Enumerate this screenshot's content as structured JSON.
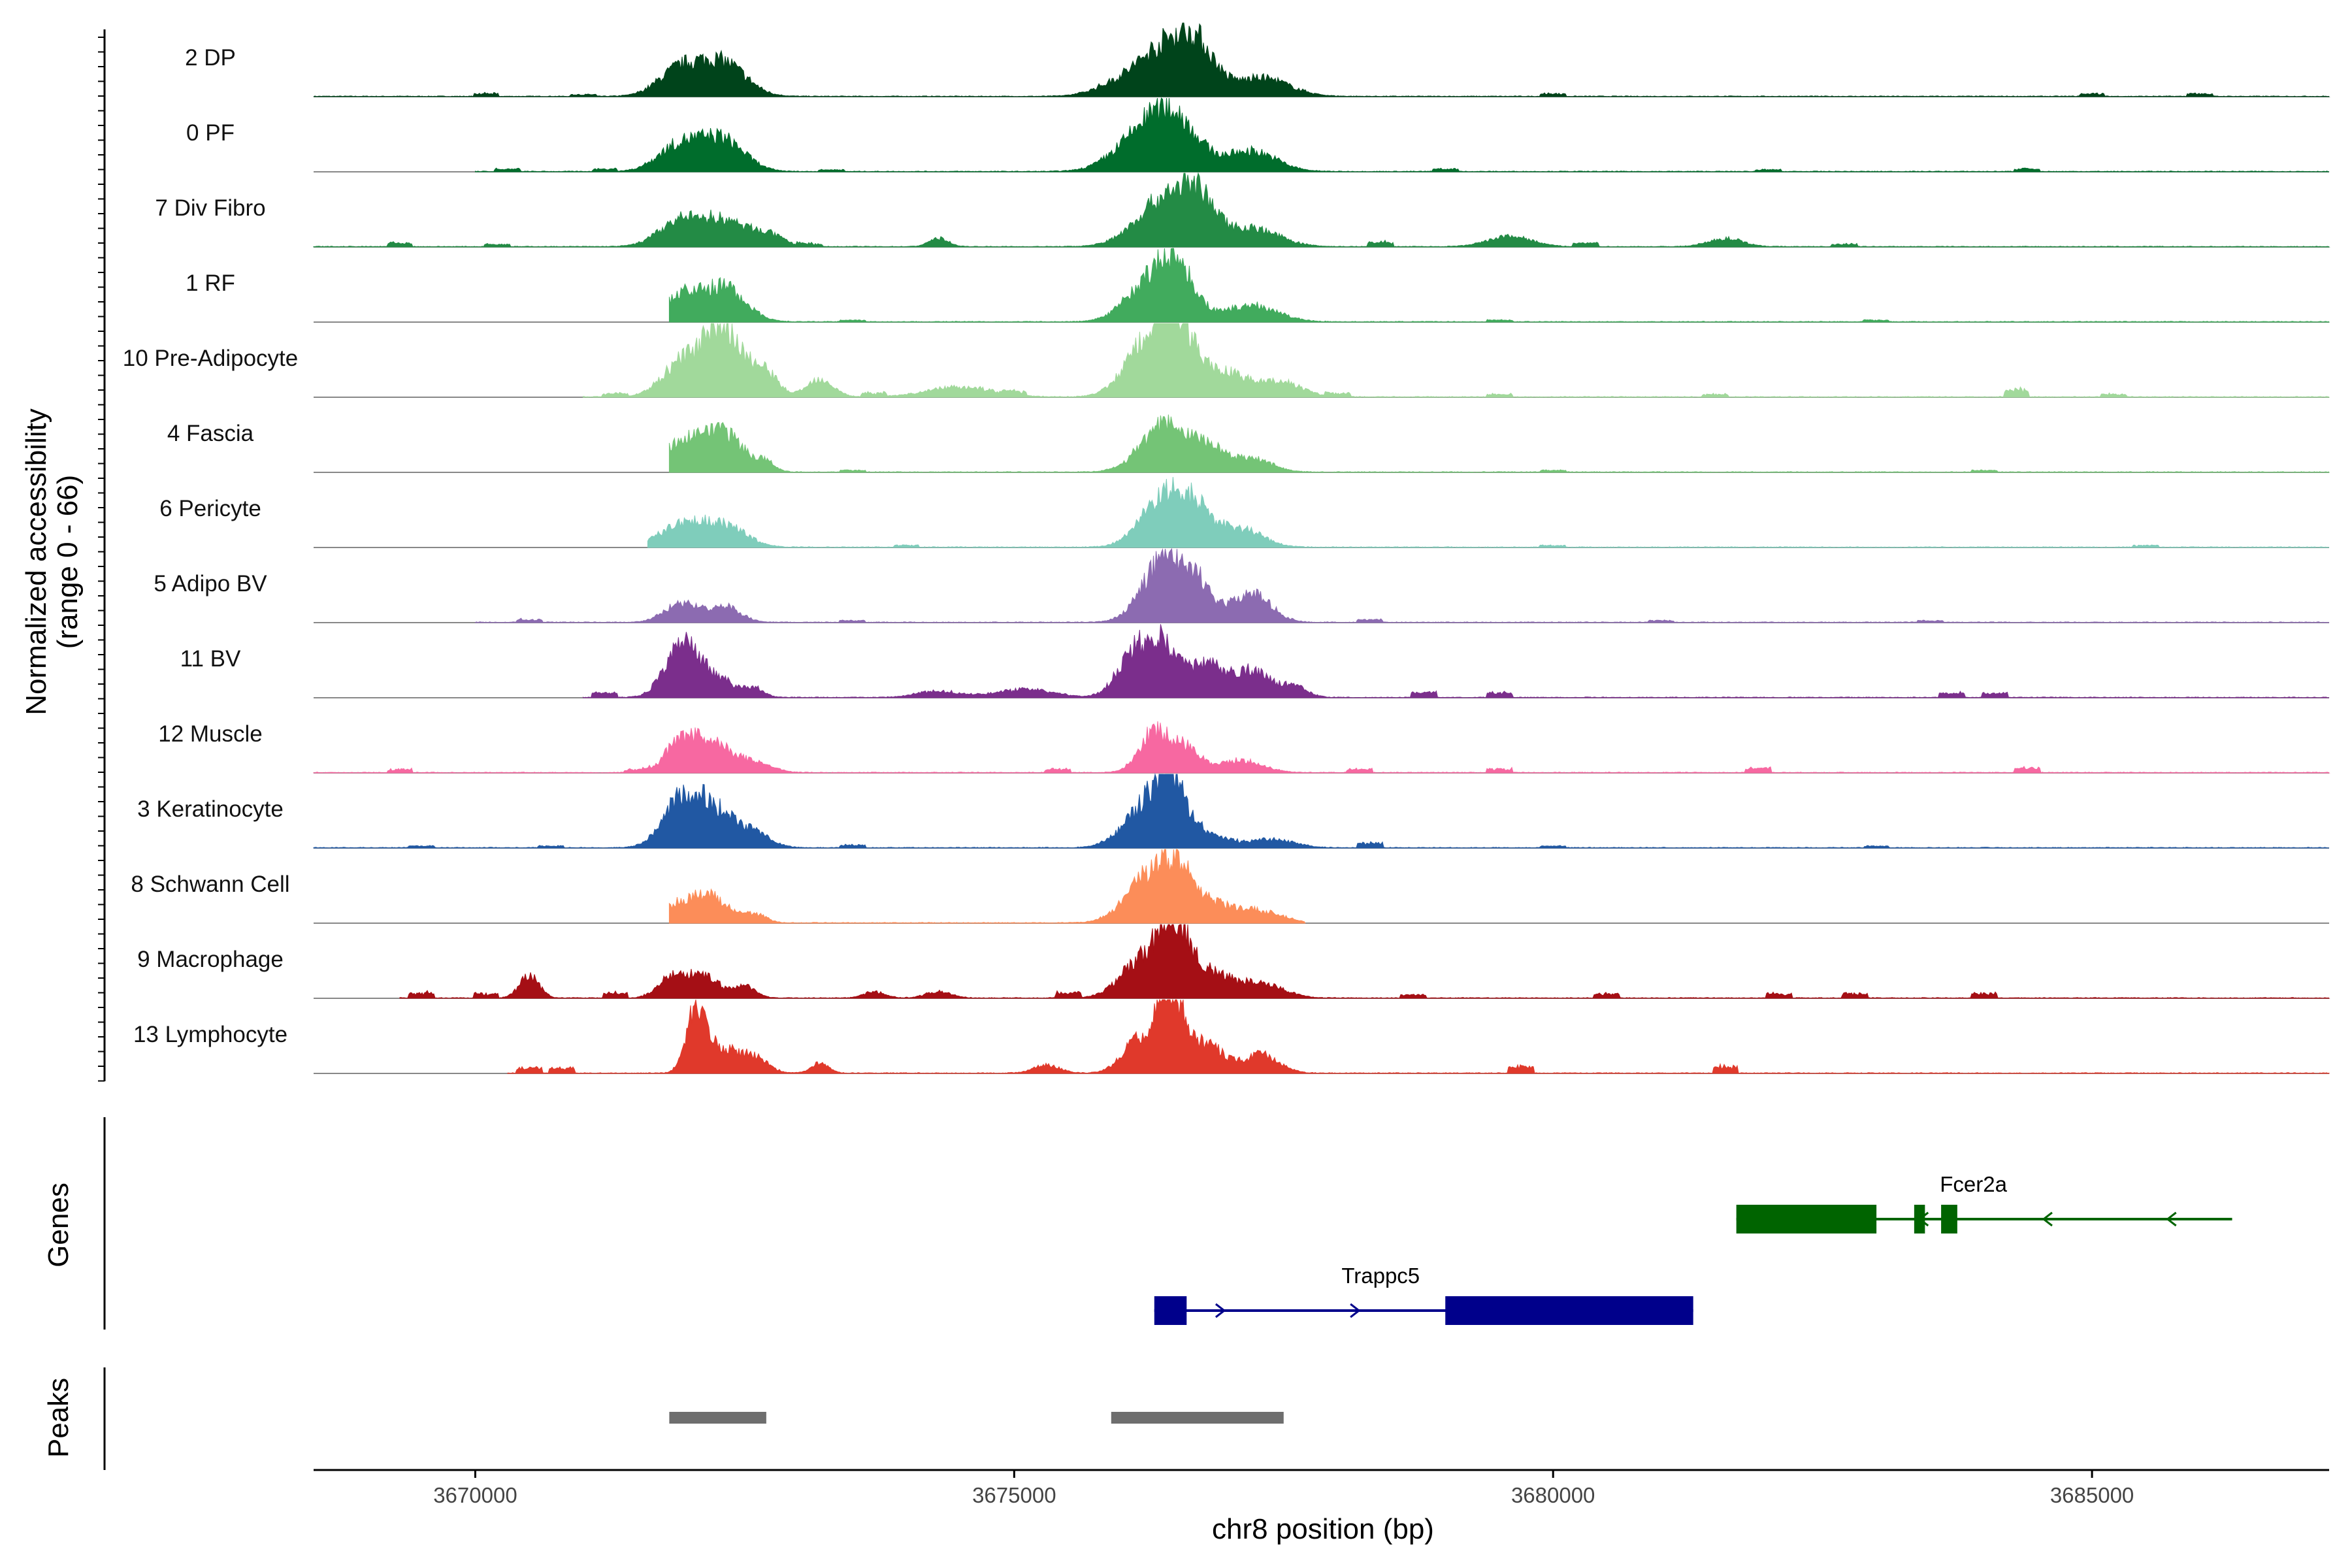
{
  "chart_data": {
    "type": "area",
    "title": "",
    "xlabel": "chr8 position (bp)",
    "ylabel_line1": "Normalized accessibility",
    "ylabel_line2": "(range 0 - 66)",
    "y_range": [
      0,
      66
    ],
    "x_range": [
      3668500,
      3687200
    ],
    "x_ticks": [
      3670000,
      3675000,
      3680000,
      3685000
    ],
    "x_tick_labels": [
      "3670000",
      "3675000",
      "3680000",
      "3685000"
    ],
    "tracks": [
      {
        "name": "2 DP",
        "color": "#00441b",
        "start": 3668500,
        "end": 3687200,
        "peaks": [
          [
            3671900,
            26,
            200
          ],
          [
            3672300,
            32,
            210
          ],
          [
            3676400,
            48,
            260
          ],
          [
            3676700,
            34,
            170
          ],
          [
            3677300,
            18,
            250
          ],
          [
            3675900,
            8,
            200
          ]
        ],
        "noise": [
          [
            3670100,
            3
          ],
          [
            3671000,
            2
          ],
          [
            3680000,
            3
          ],
          [
            3685000,
            3
          ],
          [
            3686000,
            3
          ]
        ]
      },
      {
        "name": "0 PF",
        "color": "#006d2c",
        "start": 3670000,
        "end": 3687200,
        "peaks": [
          [
            3671900,
            26,
            200
          ],
          [
            3672300,
            30,
            200
          ],
          [
            3676200,
            34,
            260
          ],
          [
            3676500,
            42,
            220
          ],
          [
            3677200,
            20,
            230
          ]
        ],
        "noise": [
          [
            3670300,
            3
          ],
          [
            3671200,
            3
          ],
          [
            3673300,
            2
          ],
          [
            3679000,
            3
          ],
          [
            3682000,
            2
          ],
          [
            3684400,
            3
          ]
        ]
      },
      {
        "name": "7 Div Fibro",
        "color": "#238b45",
        "start": 3668500,
        "end": 3687200,
        "peaks": [
          [
            3671900,
            24,
            200
          ],
          [
            3672300,
            24,
            200
          ],
          [
            3672700,
            12,
            150
          ],
          [
            3676400,
            46,
            260
          ],
          [
            3676700,
            34,
            160
          ],
          [
            3677200,
            18,
            250
          ],
          [
            3674300,
            8,
            90
          ],
          [
            3679600,
            10,
            200
          ],
          [
            3681600,
            8,
            160
          ]
        ],
        "noise": [
          [
            3669300,
            4
          ],
          [
            3670200,
            3
          ],
          [
            3673100,
            3
          ],
          [
            3678400,
            5
          ],
          [
            3680300,
            4
          ],
          [
            3682700,
            3
          ]
        ]
      },
      {
        "name": "1 RF",
        "color": "#41ab5d",
        "start": 3671800,
        "end": 3687200,
        "peaks": [
          [
            3671900,
            24,
            160
          ],
          [
            3672300,
            34,
            200
          ],
          [
            3676200,
            30,
            200
          ],
          [
            3676500,
            54,
            170
          ],
          [
            3677200,
            16,
            240
          ]
        ],
        "noise": [
          [
            3673500,
            2
          ],
          [
            3679500,
            2
          ],
          [
            3683000,
            2
          ]
        ]
      },
      {
        "name": "10 Pre-Adipocyte",
        "color": "#a1d99b",
        "start": 3671000,
        "end": 3687200,
        "peaks": [
          [
            3671900,
            30,
            180
          ],
          [
            3672300,
            66,
            190
          ],
          [
            3672700,
            20,
            120
          ],
          [
            3673200,
            18,
            120
          ],
          [
            3676500,
            70,
            190
          ],
          [
            3676200,
            40,
            200
          ],
          [
            3677000,
            22,
            200
          ],
          [
            3677500,
            14,
            180
          ],
          [
            3674500,
            10,
            300
          ]
        ],
        "noise": [
          [
            3671300,
            4
          ],
          [
            3673700,
            4
          ],
          [
            3675000,
            4
          ],
          [
            3678000,
            4
          ],
          [
            3679500,
            3
          ],
          [
            3681500,
            3
          ],
          [
            3684300,
            8
          ],
          [
            3685200,
            3
          ]
        ]
      },
      {
        "name": "4 Fascia",
        "color": "#74c476",
        "start": 3671800,
        "end": 3687200,
        "peaks": [
          [
            3671900,
            28,
            170
          ],
          [
            3672300,
            38,
            190
          ],
          [
            3672700,
            8,
            80
          ],
          [
            3676400,
            46,
            220
          ],
          [
            3676800,
            20,
            150
          ],
          [
            3677200,
            14,
            180
          ]
        ],
        "noise": [
          [
            3673500,
            2
          ],
          [
            3680000,
            2
          ],
          [
            3684000,
            2
          ]
        ]
      },
      {
        "name": "6 Pericyte",
        "color": "#7fcdbb",
        "start": 3671600,
        "end": 3687200,
        "peaks": [
          [
            3671900,
            22,
            190
          ],
          [
            3672300,
            22,
            200
          ],
          [
            3676400,
            50,
            210
          ],
          [
            3676700,
            26,
            150
          ],
          [
            3677100,
            18,
            200
          ]
        ],
        "noise": [
          [
            3674000,
            2
          ],
          [
            3680000,
            2
          ],
          [
            3685500,
            2
          ]
        ]
      },
      {
        "name": "5 Adipo BV",
        "color": "#8c6bb1",
        "start": 3670000,
        "end": 3687200,
        "peaks": [
          [
            3671900,
            18,
            150
          ],
          [
            3672300,
            16,
            150
          ],
          [
            3676400,
            62,
            200
          ],
          [
            3676700,
            28,
            150
          ],
          [
            3677200,
            28,
            180
          ]
        ],
        "noise": [
          [
            3670500,
            3
          ],
          [
            3673500,
            2
          ],
          [
            3678300,
            3
          ],
          [
            3681000,
            2
          ],
          [
            3683500,
            2
          ]
        ]
      },
      {
        "name": "11 BV",
        "color": "#7b2e8c",
        "start": 3671000,
        "end": 3687200,
        "peaks": [
          [
            3671900,
            46,
            150
          ],
          [
            3672200,
            20,
            200
          ],
          [
            3672600,
            8,
            80
          ],
          [
            3676100,
            40,
            150
          ],
          [
            3676400,
            50,
            160
          ],
          [
            3676800,
            28,
            150
          ],
          [
            3677200,
            26,
            180
          ],
          [
            3677600,
            10,
            120
          ],
          [
            3675100,
            8,
            260
          ],
          [
            3674300,
            6,
            200
          ]
        ],
        "noise": [
          [
            3671200,
            5
          ],
          [
            3678800,
            6
          ],
          [
            3679500,
            5
          ],
          [
            3683700,
            5
          ],
          [
            3684100,
            5
          ]
        ]
      },
      {
        "name": "12 Muscle",
        "color": "#f768a1",
        "start": 3668500,
        "end": 3687200,
        "peaks": [
          [
            3671900,
            28,
            140
          ],
          [
            3672200,
            30,
            170
          ],
          [
            3672600,
            10,
            150
          ],
          [
            3676300,
            40,
            140
          ],
          [
            3676600,
            22,
            130
          ],
          [
            3677100,
            12,
            200
          ]
        ],
        "noise": [
          [
            3669300,
            4
          ],
          [
            3671500,
            3
          ],
          [
            3675400,
            4
          ],
          [
            3678200,
            4
          ],
          [
            3679500,
            4
          ],
          [
            3681900,
            5
          ],
          [
            3684400,
            5
          ]
        ]
      },
      {
        "name": "3 Keratinocyte",
        "color": "#2158a3",
        "start": 3668500,
        "end": 3687200,
        "peaks": [
          [
            3671900,
            40,
            170
          ],
          [
            3672200,
            36,
            200
          ],
          [
            3672600,
            12,
            150
          ],
          [
            3676200,
            34,
            200
          ],
          [
            3676450,
            56,
            150
          ],
          [
            3676800,
            12,
            200
          ],
          [
            3677400,
            8,
            200
          ]
        ],
        "noise": [
          [
            3669500,
            2
          ],
          [
            3670700,
            2
          ],
          [
            3673500,
            3
          ],
          [
            3678300,
            5
          ],
          [
            3680000,
            2
          ],
          [
            3683000,
            2
          ]
        ]
      },
      {
        "name": "8 Schwann Cell",
        "color": "#fc8d59",
        "start": 3671800,
        "end": 3677700,
        "peaks": [
          [
            3671900,
            18,
            150
          ],
          [
            3672200,
            24,
            160
          ],
          [
            3672600,
            8,
            100
          ],
          [
            3676200,
            34,
            200
          ],
          [
            3676500,
            50,
            180
          ],
          [
            3676900,
            14,
            200
          ],
          [
            3677300,
            10,
            200
          ]
        ],
        "noise": []
      },
      {
        "name": "9 Macrophage",
        "color": "#a50f15",
        "start": 3669300,
        "end": 3687200,
        "peaks": [
          [
            3670500,
            22,
            90
          ],
          [
            3671800,
            18,
            120
          ],
          [
            3672100,
            24,
            150
          ],
          [
            3672500,
            12,
            100
          ],
          [
            3676200,
            38,
            200
          ],
          [
            3676500,
            68,
            140
          ],
          [
            3676850,
            22,
            180
          ],
          [
            3677300,
            14,
            200
          ],
          [
            3673700,
            6,
            100
          ],
          [
            3674300,
            6,
            120
          ]
        ],
        "noise": [
          [
            3669500,
            6
          ],
          [
            3670100,
            5
          ],
          [
            3671300,
            6
          ],
          [
            3675500,
            6
          ],
          [
            3678700,
            4
          ],
          [
            3680500,
            5
          ],
          [
            3682100,
            5
          ],
          [
            3682800,
            5
          ],
          [
            3684000,
            5
          ]
        ]
      },
      {
        "name": "13 Lymphocyte",
        "color": "#e0392b",
        "start": 3670300,
        "end": 3687200,
        "peaks": [
          [
            3672050,
            62,
            90
          ],
          [
            3672300,
            24,
            150
          ],
          [
            3672600,
            14,
            120
          ],
          [
            3676150,
            30,
            150
          ],
          [
            3676450,
            76,
            130
          ],
          [
            3676800,
            26,
            160
          ],
          [
            3677300,
            18,
            160
          ],
          [
            3673200,
            10,
            80
          ],
          [
            3675300,
            8,
            120
          ]
        ],
        "noise": [
          [
            3670500,
            6
          ],
          [
            3670800,
            6
          ],
          [
            3679700,
            8
          ],
          [
            3681600,
            8
          ]
        ]
      }
    ],
    "genes": [
      {
        "name": "Fcer2a",
        "strand": "-",
        "color": "#006400",
        "line_start": 3681700,
        "line_end": 3686300,
        "exons": [
          [
            3681700,
            3683000
          ],
          [
            3683350,
            3683450
          ],
          [
            3683600,
            3683750
          ]
        ],
        "label_x": 3683900,
        "row": 1
      },
      {
        "name": "Trappc5",
        "strand": "+",
        "color": "#00008b",
        "line_start": 3676300,
        "line_end": 3681300,
        "exons": [
          [
            3676300,
            3676600
          ],
          [
            3679000,
            3681300
          ]
        ],
        "label_x": 3678400,
        "row": 2
      }
    ],
    "peaks": [
      [
        3671800,
        3672700
      ],
      [
        3675900,
        3677500
      ]
    ],
    "panel_labels": [
      "Genes",
      "Peaks"
    ]
  }
}
